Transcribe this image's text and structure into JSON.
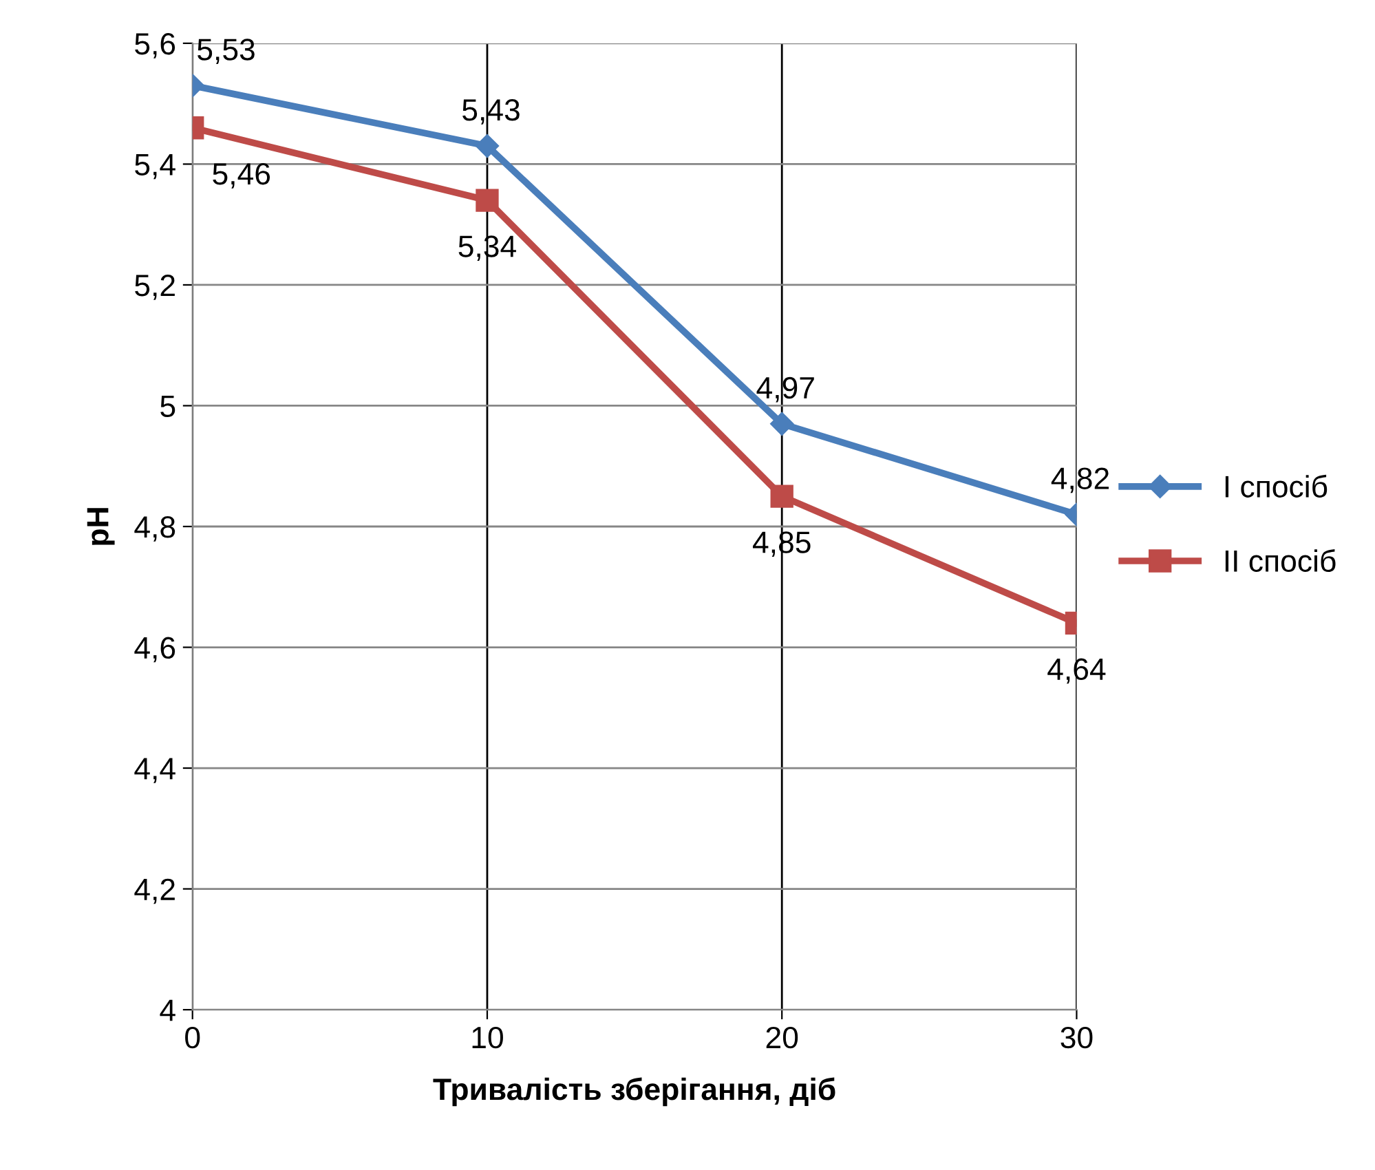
{
  "chart_data": {
    "type": "line",
    "xlabel": "Тривалість зберігання, діб",
    "ylabel": "pH",
    "x": [
      0,
      10,
      20,
      30
    ],
    "xlim": [
      0,
      30
    ],
    "xticks": [
      0,
      10,
      20,
      30
    ],
    "ylim": [
      4,
      5.6
    ],
    "yticks": [
      4,
      {
        "value": 4.2,
        "label": "4,2"
      },
      {
        "value": 4.4,
        "label": "4,4"
      },
      {
        "value": 4.6,
        "label": "4,6"
      },
      {
        "value": 4.8,
        "label": "4,8"
      },
      5,
      {
        "value": 5.2,
        "label": "5,2"
      },
      {
        "value": 5.4,
        "label": "5,4"
      },
      {
        "value": 5.6,
        "label": "5,6"
      }
    ],
    "grid": true,
    "legend": "right",
    "series": [
      {
        "name": "I спосіб",
        "color": "#4a7ebb",
        "marker": "diamond",
        "values": [
          5.53,
          5.43,
          4.97,
          4.82
        ],
        "value_labels": [
          "5,53",
          "5,43",
          "4,97",
          "4,82"
        ]
      },
      {
        "name": "II спосіб",
        "color": "#be4b48",
        "marker": "square",
        "values": [
          5.46,
          5.34,
          4.85,
          4.64
        ],
        "value_labels": [
          "5,46",
          "5,34",
          "4,85",
          "4,64"
        ]
      }
    ]
  }
}
